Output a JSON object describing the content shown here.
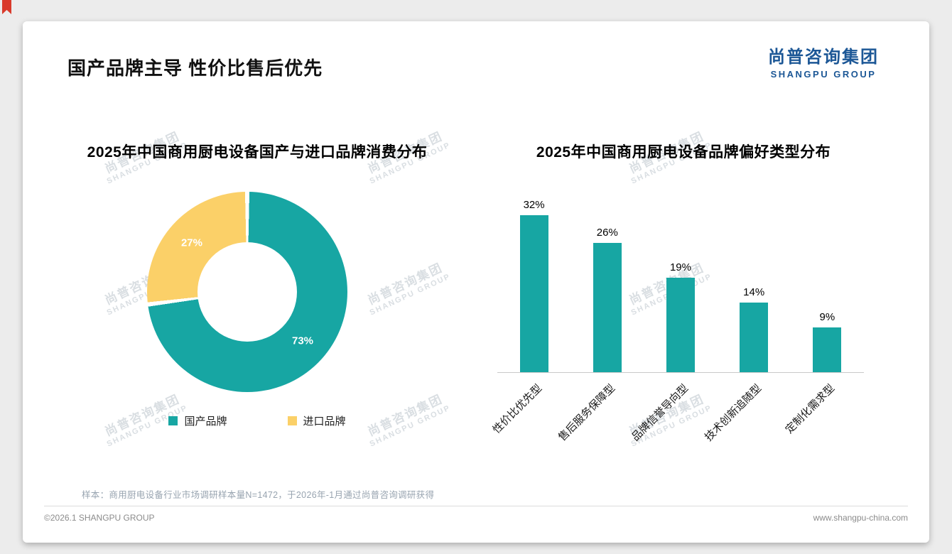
{
  "page": {
    "title": "国产品牌主导 性价比售后优先",
    "logo": {
      "cn": "尚普咨询集团",
      "en": "SHANGPU GROUP"
    },
    "footer_note": "样本：商用厨电设备行业市场调研样本量N=1472，于2026年-1月通过尚普咨询调研获得",
    "footer_left": "©2026.1 SHANGPU GROUP",
    "footer_right": "www.shangpu-china.com",
    "watermark": {
      "line1": "尚普咨询集团",
      "line2": "SHANGPU GROUP"
    }
  },
  "colors": {
    "teal": "#17a6a3",
    "yellow": "#fbd068",
    "logo_blue": "#1c5796",
    "ribbon_red": "#d93a2b"
  },
  "chart_data": [
    {
      "type": "pie",
      "donut": true,
      "title": "2025年中国商用厨电设备国产与进口品牌消费分布",
      "labels": [
        "国产品牌",
        "进口品牌"
      ],
      "values": [
        73,
        27
      ],
      "value_labels": [
        "73%",
        "27%"
      ],
      "colors": [
        "#17a6a3",
        "#fbd068"
      ],
      "legend_position": "bottom"
    },
    {
      "type": "bar",
      "title": "2025年中国商用厨电设备品牌偏好类型分布",
      "categories": [
        "性价比优先型",
        "售后服务保障型",
        "品牌信誉导向型",
        "技术创新追随型",
        "定制化需求型"
      ],
      "values": [
        32,
        26,
        19,
        14,
        9
      ],
      "value_labels": [
        "32%",
        "26%",
        "19%",
        "14%",
        "9%"
      ],
      "bar_color": "#17a6a3",
      "ylim": [
        0,
        35
      ],
      "grid": false,
      "value_suffix": "%"
    }
  ]
}
